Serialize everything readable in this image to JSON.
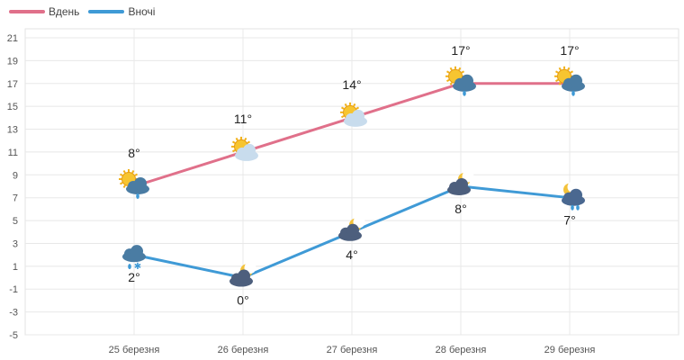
{
  "chart_data": {
    "type": "line",
    "categories": [
      "25 березня",
      "26 березня",
      "27 березня",
      "28 березня",
      "29 березня"
    ],
    "series": [
      {
        "name": "Вдень",
        "values": [
          8,
          11,
          14,
          17,
          17
        ],
        "labels": [
          "8°",
          "11°",
          "14°",
          "17°",
          "17°"
        ],
        "color": "#e0708a",
        "icons": [
          "sun-cloud-rain-icon",
          "sun-cloud-icon",
          "sun-cloud-icon",
          "sun-cloud-rain-icon",
          "sun-cloud-rain-icon"
        ]
      },
      {
        "name": "Вночі",
        "values": [
          2,
          0,
          4,
          8,
          7
        ],
        "labels": [
          "2°",
          "0°",
          "4°",
          "8°",
          "7°"
        ],
        "color": "#3f9ad6",
        "icons": [
          "cloud-rain-snow-icon",
          "moon-cloud-icon",
          "moon-cloud-icon",
          "moon-cloud-icon",
          "moon-cloud-rain-icon"
        ]
      }
    ],
    "y_ticks": [
      21,
      19,
      17,
      15,
      13,
      11,
      9,
      7,
      5,
      3,
      1,
      -1,
      -3,
      -5
    ],
    "ylim": [
      -5,
      21
    ],
    "grid": true,
    "legend": "top-left"
  }
}
